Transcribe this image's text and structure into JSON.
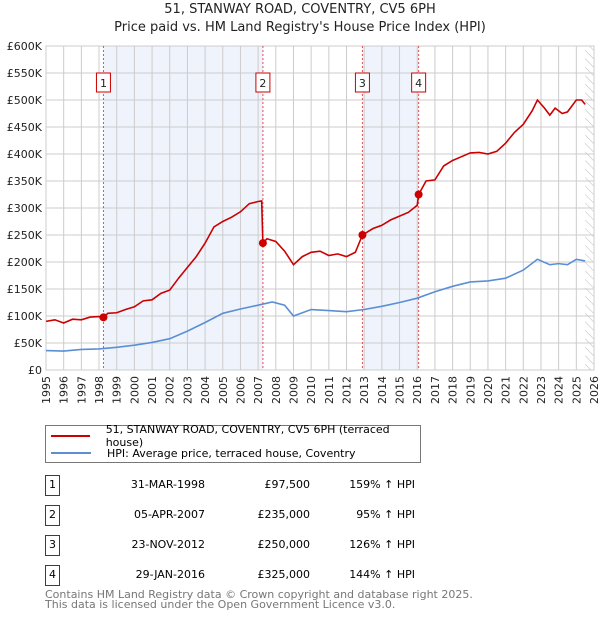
{
  "chart_data": {
    "type": "line",
    "title": "51, STANWAY ROAD, COVENTRY, CV5 6PH",
    "subtitle": "Price paid vs. HM Land Registry's House Price Index (HPI)",
    "xlim": [
      1995,
      2026
    ],
    "ylim": [
      0,
      600000
    ],
    "x_ticks": [
      "1995",
      "1996",
      "1997",
      "1998",
      "1999",
      "2000",
      "2001",
      "2002",
      "2003",
      "2004",
      "2005",
      "2006",
      "2007",
      "2008",
      "2009",
      "2010",
      "2011",
      "2012",
      "2013",
      "2014",
      "2015",
      "2016",
      "2017",
      "2018",
      "2019",
      "2020",
      "2021",
      "2022",
      "2023",
      "2024",
      "2025",
      "2026"
    ],
    "y_ticks": [
      {
        "v": 0,
        "label": "£0"
      },
      {
        "v": 50000,
        "label": "£50K"
      },
      {
        "v": 100000,
        "label": "£100K"
      },
      {
        "v": 150000,
        "label": "£150K"
      },
      {
        "v": 200000,
        "label": "£200K"
      },
      {
        "v": 250000,
        "label": "£250K"
      },
      {
        "v": 300000,
        "label": "£300K"
      },
      {
        "v": 350000,
        "label": "£350K"
      },
      {
        "v": 400000,
        "label": "£400K"
      },
      {
        "v": 450000,
        "label": "£450K"
      },
      {
        "v": 500000,
        "label": "£500K"
      },
      {
        "v": 550000,
        "label": "£550K"
      },
      {
        "v": 600000,
        "label": "£600K"
      }
    ],
    "grid": true,
    "shaded_ranges": [
      [
        1998.25,
        2007.27
      ],
      [
        2012.9,
        2016.08
      ]
    ],
    "hatched_from": 2025.5,
    "series": [
      {
        "name": "51, STANWAY ROAD, COVENTRY, CV5 6PH (terraced house)",
        "color": "#cc0000",
        "points": [
          [
            1995,
            90
          ],
          [
            1995.5,
            93
          ],
          [
            1996,
            87
          ],
          [
            1996.5,
            94
          ],
          [
            1997,
            93
          ],
          [
            1997.5,
            98
          ],
          [
            1998,
            99
          ],
          [
            1998.25,
            97.5
          ],
          [
            1998.5,
            105
          ],
          [
            1999,
            106
          ],
          [
            1999.5,
            112
          ],
          [
            2000,
            117
          ],
          [
            2000.5,
            128
          ],
          [
            2001,
            130
          ],
          [
            2001.5,
            142
          ],
          [
            2002,
            148
          ],
          [
            2002.5,
            170
          ],
          [
            2003,
            190
          ],
          [
            2003.5,
            210
          ],
          [
            2004,
            235
          ],
          [
            2004.5,
            265
          ],
          [
            2005,
            275
          ],
          [
            2005.5,
            283
          ],
          [
            2006,
            293
          ],
          [
            2006.5,
            308
          ],
          [
            2007,
            312
          ],
          [
            2007.2,
            313
          ],
          [
            2007.27,
            235
          ],
          [
            2007.5,
            243
          ],
          [
            2008,
            238
          ],
          [
            2008.5,
            220
          ],
          [
            2009,
            195
          ],
          [
            2009.5,
            210
          ],
          [
            2010,
            218
          ],
          [
            2010.5,
            220
          ],
          [
            2011,
            212
          ],
          [
            2011.5,
            215
          ],
          [
            2012,
            210
          ],
          [
            2012.5,
            218
          ],
          [
            2012.9,
            250
          ],
          [
            2013.5,
            262
          ],
          [
            2014,
            268
          ],
          [
            2014.5,
            278
          ],
          [
            2015,
            285
          ],
          [
            2015.5,
            292
          ],
          [
            2016,
            305
          ],
          [
            2016.08,
            325
          ],
          [
            2016.5,
            350
          ],
          [
            2017,
            352
          ],
          [
            2017.5,
            378
          ],
          [
            2018,
            388
          ],
          [
            2018.5,
            395
          ],
          [
            2019,
            402
          ],
          [
            2019.5,
            403
          ],
          [
            2020,
            400
          ],
          [
            2020.5,
            405
          ],
          [
            2021,
            420
          ],
          [
            2021.5,
            440
          ],
          [
            2022,
            455
          ],
          [
            2022.5,
            480
          ],
          [
            2022.8,
            500
          ],
          [
            2023.2,
            485
          ],
          [
            2023.5,
            472
          ],
          [
            2023.8,
            485
          ],
          [
            2024.2,
            475
          ],
          [
            2024.5,
            478
          ],
          [
            2025,
            500
          ],
          [
            2025.3,
            500
          ],
          [
            2025.5,
            492
          ]
        ]
      },
      {
        "name": "HPI: Average price, terraced house, Coventry",
        "color": "#5b8fd4",
        "points": [
          [
            1995,
            36
          ],
          [
            1996,
            35
          ],
          [
            1997,
            38
          ],
          [
            1998,
            39
          ],
          [
            1999,
            42
          ],
          [
            2000,
            46
          ],
          [
            2001,
            51
          ],
          [
            2002,
            58
          ],
          [
            2003,
            72
          ],
          [
            2004,
            88
          ],
          [
            2005,
            105
          ],
          [
            2006,
            113
          ],
          [
            2007,
            120
          ],
          [
            2007.8,
            126
          ],
          [
            2008.5,
            120
          ],
          [
            2009,
            100
          ],
          [
            2010,
            112
          ],
          [
            2011,
            110
          ],
          [
            2012,
            108
          ],
          [
            2013,
            112
          ],
          [
            2014,
            118
          ],
          [
            2015,
            125
          ],
          [
            2016,
            133
          ],
          [
            2017,
            145
          ],
          [
            2018,
            155
          ],
          [
            2019,
            163
          ],
          [
            2020,
            165
          ],
          [
            2021,
            170
          ],
          [
            2022,
            185
          ],
          [
            2022.8,
            205
          ],
          [
            2023.5,
            195
          ],
          [
            2024,
            197
          ],
          [
            2024.5,
            195
          ],
          [
            2025,
            205
          ],
          [
            2025.5,
            202
          ]
        ]
      }
    ],
    "y_units_note": "points y in £ thousands",
    "markers": [
      {
        "label": "1",
        "x": 1998.25,
        "y": 97.5
      },
      {
        "label": "2",
        "x": 2007.27,
        "y": 235
      },
      {
        "label": "3",
        "x": 2012.9,
        "y": 250
      },
      {
        "label": "4",
        "x": 2016.08,
        "y": 325
      }
    ]
  },
  "legend": {
    "red": "51, STANWAY ROAD, COVENTRY, CV5 6PH (terraced house)",
    "blue": "HPI: Average price, terraced house, Coventry"
  },
  "transactions": [
    {
      "n": "1",
      "date": "31-MAR-1998",
      "price": "£97,500",
      "pct": "159% ↑ HPI"
    },
    {
      "n": "2",
      "date": "05-APR-2007",
      "price": "£235,000",
      "pct": "95% ↑ HPI"
    },
    {
      "n": "3",
      "date": "23-NOV-2012",
      "price": "£250,000",
      "pct": "126% ↑ HPI"
    },
    {
      "n": "4",
      "date": "29-JAN-2016",
      "price": "£325,000",
      "pct": "144% ↑ HPI"
    }
  ],
  "footer": [
    "Contains HM Land Registry data © Crown copyright and database right 2025.",
    "This data is licensed under the Open Government Licence v3.0."
  ]
}
